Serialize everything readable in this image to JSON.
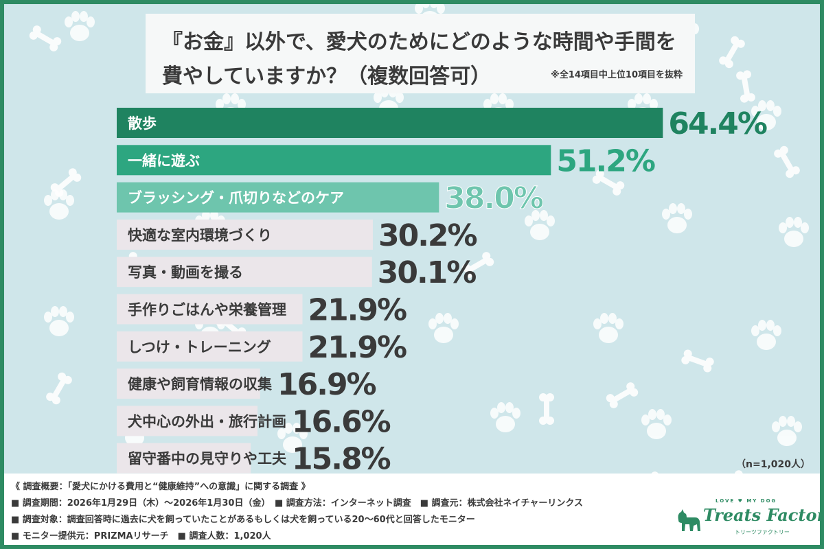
{
  "title": {
    "line1": "『お金』以外で、愛犬のためにどのような時間や手間を",
    "line2": "費やしていますか？（複数回答可）",
    "note": "※全14項目中上位10項目を抜粋"
  },
  "chart_data": {
    "type": "bar",
    "orientation": "horizontal",
    "categories": [
      "散歩",
      "一緒に遊ぶ",
      "ブラッシング・爪切りなどのケア",
      "快適な室内環境づくり",
      "写真・動画を撮る",
      "手作りごはんや栄養管理",
      "しつけ・トレーニング",
      "健康や飼育情報の収集",
      "犬中心の外出・旅行計画",
      "留守番中の見守りや工夫"
    ],
    "values": [
      64.4,
      51.2,
      38.0,
      30.2,
      30.1,
      21.9,
      21.9,
      16.9,
      16.6,
      15.8
    ],
    "value_labels": [
      "64.4%",
      "51.2%",
      "38.0%",
      "30.2%",
      "30.1%",
      "21.9%",
      "21.9%",
      "16.9%",
      "16.6%",
      "15.8%"
    ],
    "colors": [
      "#1f8360",
      "#2da680",
      "#6ec5ad",
      "#ebe6ea",
      "#ebe6ea",
      "#ebe6ea",
      "#ebe6ea",
      "#ebe6ea",
      "#ebe6ea",
      "#ebe6ea"
    ],
    "label_colors": [
      "#ffffff",
      "#ffffff",
      "#ffffff",
      "#3a3a3a",
      "#3a3a3a",
      "#3a3a3a",
      "#3a3a3a",
      "#3a3a3a",
      "#3a3a3a",
      "#3a3a3a"
    ],
    "value_colors": [
      "#1f8360",
      "#2da680",
      "#6ec5ad",
      "#3a3a3a",
      "#3a3a3a",
      "#3a3a3a",
      "#3a3a3a",
      "#3a3a3a",
      "#3a3a3a",
      "#3a3a3a"
    ],
    "unit": "%"
  },
  "n_label": "（n=1,020人）",
  "footer": {
    "line1": "《 調査概要：「愛犬にかける費用と“健康維持”への意識」に関する調査 》",
    "line2": "■ 調査期間：2026年1月29日（木）～2026年1月30日（金）　■ 調査方法：インターネット調査　■ 調査元：株式会社ネイチャーリンクス",
    "line3": "■ 調査対象：調査回答時に過去に犬を飼っていたことがあるもしくは犬を飼っている20〜60代と回答したモニター",
    "line4": "■ モニター提供元：PRIZMAリサーチ　■ 調査人数：1,020人"
  },
  "logo": {
    "tagline": "LOVE ♥ MY DOG",
    "name": "Treats Factory",
    "sub": "トリーツファクトリー",
    "icon": "dog-silhouette-icon"
  },
  "colors": {
    "background": "#cfe6ea",
    "frame": "#2e8b63",
    "pattern": "#ffffff"
  }
}
